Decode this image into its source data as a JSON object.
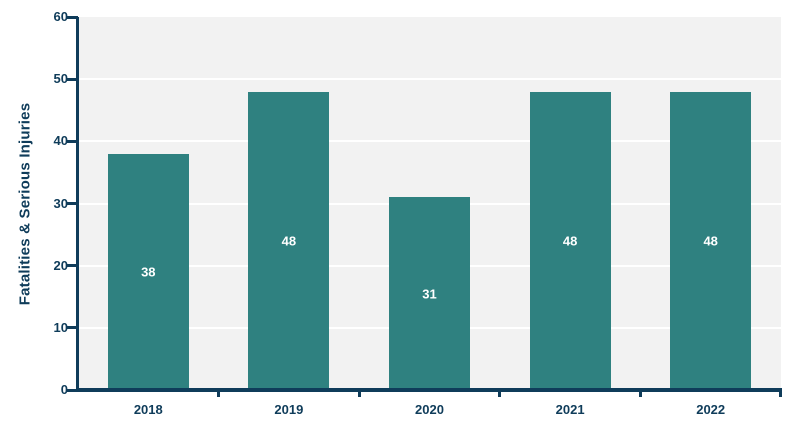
{
  "chart_data": {
    "type": "bar",
    "title": "",
    "categories": [
      "2018",
      "2019",
      "2020",
      "2021",
      "2022"
    ],
    "values": [
      38,
      48,
      31,
      48,
      48
    ],
    "value_labels": [
      "38",
      "48",
      "31",
      "48",
      "48"
    ],
    "xlabel": "",
    "ylabel": "Fatalities & Serious Injuries",
    "ylim": [
      0,
      60
    ],
    "ytick_step": 10,
    "yticks": [
      0,
      10,
      20,
      30,
      40,
      50,
      60
    ],
    "grid": "horizontal white gridlines on shaded plot area",
    "legend": "none"
  },
  "colors": {
    "bar": "#2f8180",
    "axis_and_text": "#0f3c5a",
    "plot_background": "#f2f2f2",
    "gridline": "#ffffff",
    "value_label": "#ffffff",
    "page_background": "#ffffff"
  }
}
